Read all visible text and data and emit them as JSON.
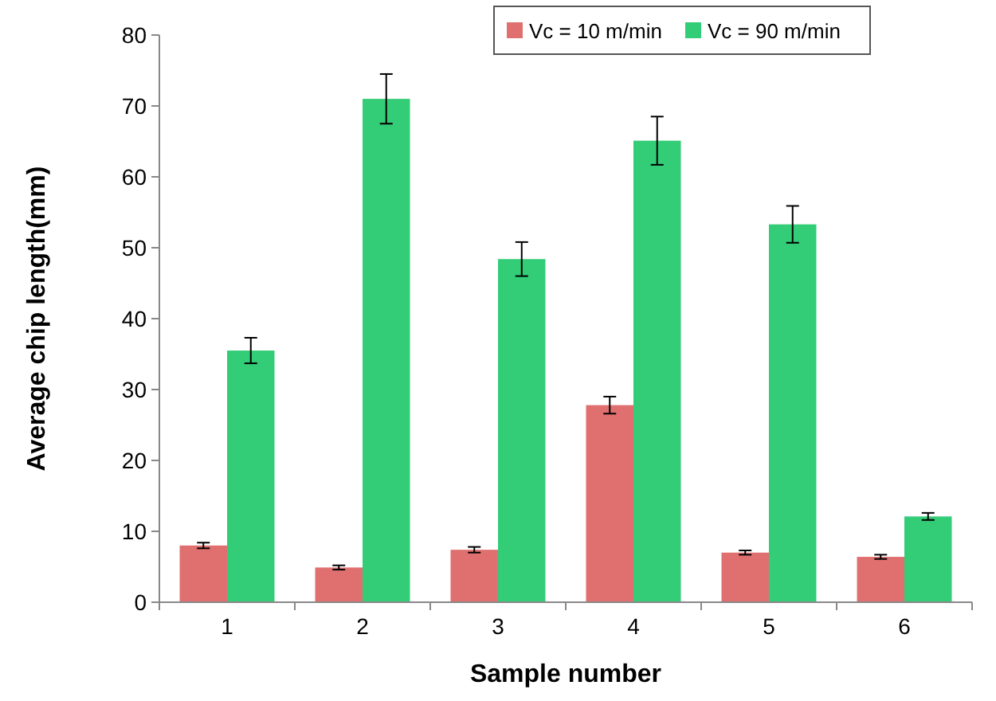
{
  "chart_data": {
    "type": "bar",
    "xlabel": "Sample number",
    "ylabel": "Average chip length(mm)",
    "categories": [
      "1",
      "2",
      "3",
      "4",
      "5",
      "6"
    ],
    "series": [
      {
        "name": "Vc = 10 m/min",
        "color": "#e07070",
        "values": [
          8.0,
          4.9,
          7.4,
          27.8,
          7.0,
          6.4
        ],
        "errors": [
          0.4,
          0.3,
          0.4,
          1.2,
          0.3,
          0.3
        ]
      },
      {
        "name": "Vc = 90 m/min",
        "color": "#33cc77",
        "values": [
          35.5,
          71,
          48.4,
          65.1,
          53.3,
          12.1
        ],
        "errors": [
          1.8,
          3.5,
          2.4,
          3.4,
          2.6,
          0.5
        ]
      }
    ],
    "ylim": [
      0,
      80
    ],
    "yticks": [
      0,
      10,
      20,
      30,
      40,
      50,
      60,
      70,
      80
    ],
    "grid": false,
    "legend": "top right"
  }
}
